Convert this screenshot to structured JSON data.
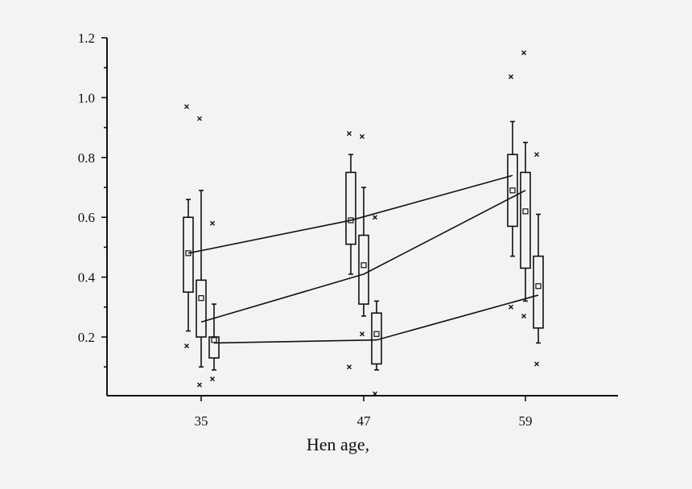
{
  "chart_data": {
    "type": "box",
    "xlabel": "Hen age,",
    "ylabel": "",
    "ylim": [
      0,
      1.2
    ],
    "yticks": [
      "0.2",
      "0.4",
      "0.6",
      "0.8",
      "1.0",
      "1.2"
    ],
    "categories": [
      "35",
      "47",
      "59"
    ],
    "grid": false,
    "series": [
      {
        "boxes": [
          {
            "whisker_low": 0.22,
            "q1": 0.35,
            "median": 0.48,
            "mean": 0.48,
            "q3": 0.6,
            "whisker_high": 0.66,
            "outliers": [
              0.97,
              0.17
            ]
          },
          {
            "whisker_low": 0.41,
            "q1": 0.51,
            "median": 0.59,
            "mean": 0.59,
            "q3": 0.75,
            "whisker_high": 0.81,
            "outliers": [
              0.88,
              0.1
            ]
          },
          {
            "whisker_low": 0.47,
            "q1": 0.57,
            "median": 0.74,
            "mean": 0.69,
            "q3": 0.81,
            "whisker_high": 0.92,
            "outliers": [
              1.07,
              0.3
            ]
          }
        ]
      },
      {
        "boxes": [
          {
            "whisker_low": 0.1,
            "q1": 0.2,
            "median": 0.25,
            "mean": 0.33,
            "q3": 0.39,
            "whisker_high": 0.69,
            "outliers": [
              0.93,
              0.04
            ]
          },
          {
            "whisker_low": 0.27,
            "q1": 0.31,
            "median": 0.41,
            "mean": 0.44,
            "q3": 0.54,
            "whisker_high": 0.7,
            "outliers": [
              0.87,
              0.21
            ]
          },
          {
            "whisker_low": 0.32,
            "q1": 0.43,
            "median": 0.69,
            "mean": 0.62,
            "q3": 0.75,
            "whisker_high": 0.85,
            "outliers": [
              1.15,
              0.27
            ]
          }
        ]
      },
      {
        "boxes": [
          {
            "whisker_low": 0.09,
            "q1": 0.13,
            "median": 0.18,
            "mean": 0.19,
            "q3": 0.2,
            "whisker_high": 0.31,
            "outliers": [
              0.58,
              0.06
            ]
          },
          {
            "whisker_low": 0.09,
            "q1": 0.11,
            "median": 0.19,
            "mean": 0.21,
            "q3": 0.28,
            "whisker_high": 0.32,
            "outliers": [
              0.6,
              0.01
            ]
          },
          {
            "whisker_low": 0.18,
            "q1": 0.23,
            "median": 0.34,
            "mean": 0.37,
            "q3": 0.47,
            "whisker_high": 0.61,
            "outliers": [
              0.81,
              0.11
            ]
          }
        ]
      }
    ]
  }
}
